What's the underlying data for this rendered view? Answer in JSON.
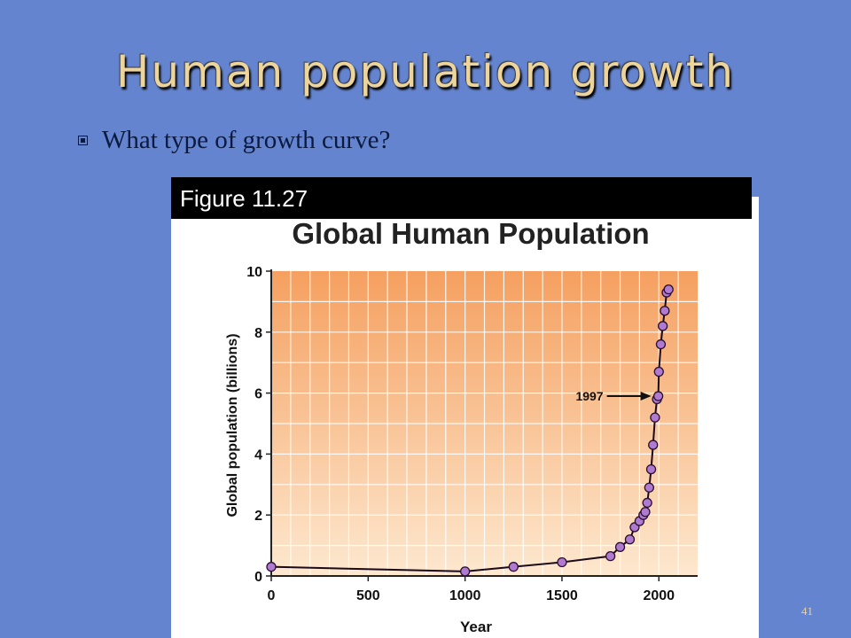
{
  "slide": {
    "title": "Human population growth",
    "bullet": "What type of growth curve?",
    "figure_label": "Figure 11.27",
    "page_number": "41"
  },
  "colors": {
    "background": "#6484cf",
    "title": "#ecd49a",
    "plot_top": "#f5a060",
    "plot_bottom": "#fde8cf",
    "marker_fill": "#b07ad0",
    "marker_stroke": "#2a1030"
  },
  "chart_data": {
    "type": "line",
    "title": "Global Human Population",
    "xlabel": "Year",
    "ylabel": "Global population (billions)",
    "xlim": [
      0,
      2200
    ],
    "ylim": [
      0,
      10
    ],
    "xticks": [
      0,
      500,
      1000,
      1500,
      2000
    ],
    "yticks": [
      0,
      2,
      4,
      6,
      8,
      10
    ],
    "grid": true,
    "legend": "none",
    "series": [
      {
        "x": [
          0,
          1000,
          1250,
          1500,
          1750,
          1800,
          1850,
          1875,
          1900,
          1920,
          1930,
          1940,
          1950,
          1960,
          1970,
          1980,
          1990,
          1997,
          2000,
          2010,
          2020,
          2030,
          2040,
          2050
        ],
        "y": [
          0.3,
          0.15,
          0.3,
          0.45,
          0.65,
          0.95,
          1.2,
          1.6,
          1.8,
          2.0,
          2.1,
          2.4,
          2.9,
          3.5,
          4.3,
          5.2,
          5.8,
          5.9,
          6.7,
          7.6,
          8.2,
          8.7,
          9.3,
          9.4
        ]
      }
    ],
    "annotations": [
      {
        "text": "1997",
        "x": 1997,
        "y": 5.9
      }
    ]
  }
}
